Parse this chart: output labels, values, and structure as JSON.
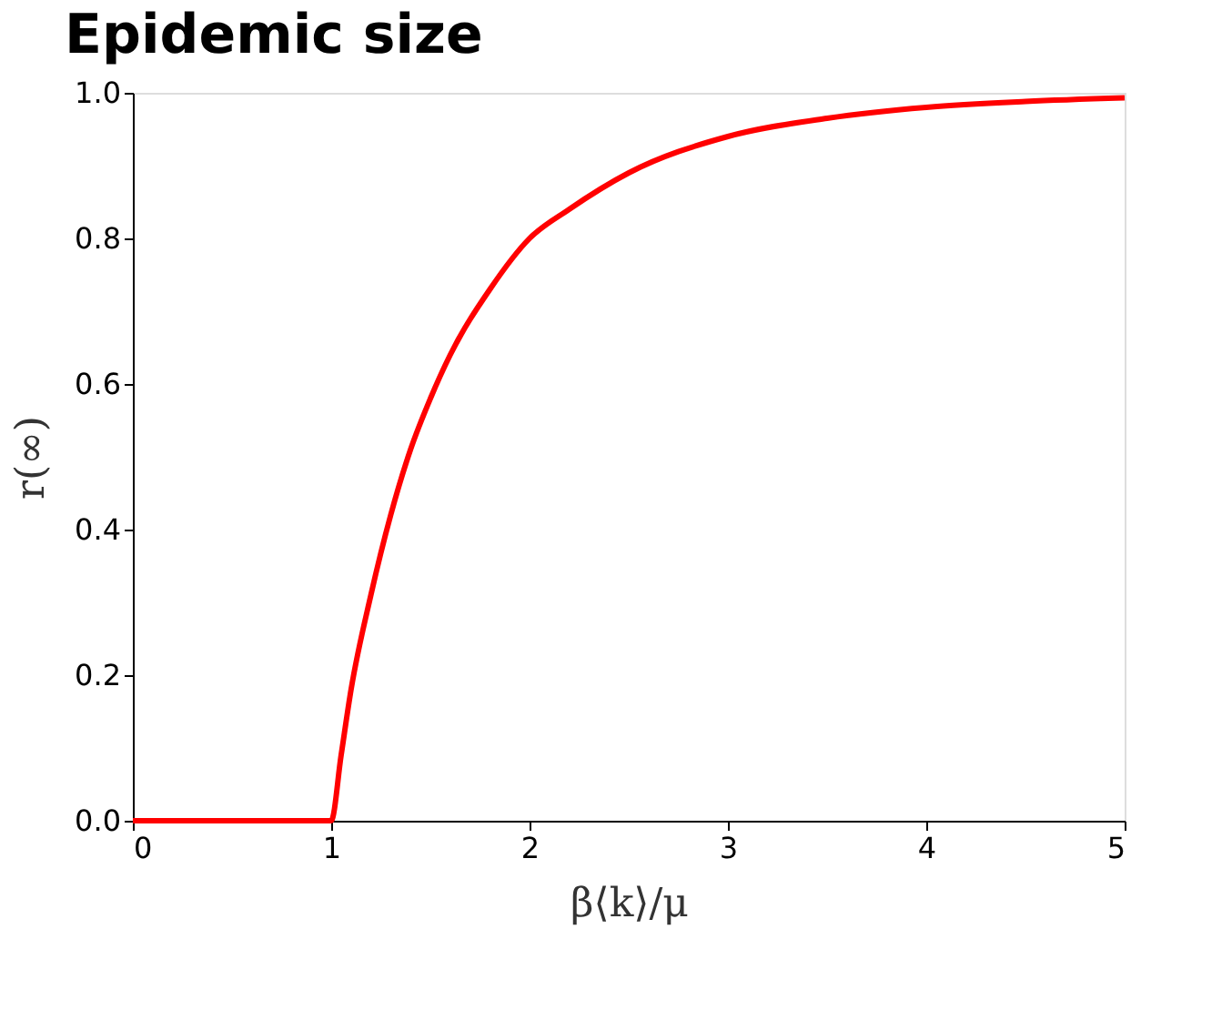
{
  "chart_data": {
    "type": "line",
    "title": "Epidemic size",
    "xlabel": "β⟨k⟩/μ",
    "ylabel": "r(∞)",
    "x": [
      0,
      1,
      1.05,
      1.1,
      1.2,
      1.3,
      1.4,
      1.5,
      1.6,
      1.8,
      2,
      2.2,
      2.5,
      3,
      3.5,
      4,
      4.5,
      5
    ],
    "series": [
      {
        "color": "#ff0000",
        "values": [
          0,
          0,
          0.09,
          0.18,
          0.31,
          0.42,
          0.51,
          0.58,
          0.64,
          0.73,
          0.8,
          0.84,
          0.89,
          0.94,
          0.965,
          0.98,
          0.988,
          0.993
        ]
      }
    ],
    "xlim": [
      0,
      5
    ],
    "xticks": [
      0,
      1,
      2,
      3,
      4,
      5
    ],
    "ylim": [
      0,
      1
    ],
    "yticks": [
      {
        "value": 0,
        "label": "0.0"
      },
      {
        "value": 0.2,
        "label": "0.2"
      },
      {
        "value": 0.4,
        "label": "0.4"
      },
      {
        "value": 0.6,
        "label": "0.6"
      },
      {
        "value": 0.8,
        "label": "0.8"
      },
      {
        "value": 1,
        "label": "1.0"
      }
    ],
    "grid": false,
    "legend": false,
    "marker": "none",
    "line_style": "solid"
  }
}
